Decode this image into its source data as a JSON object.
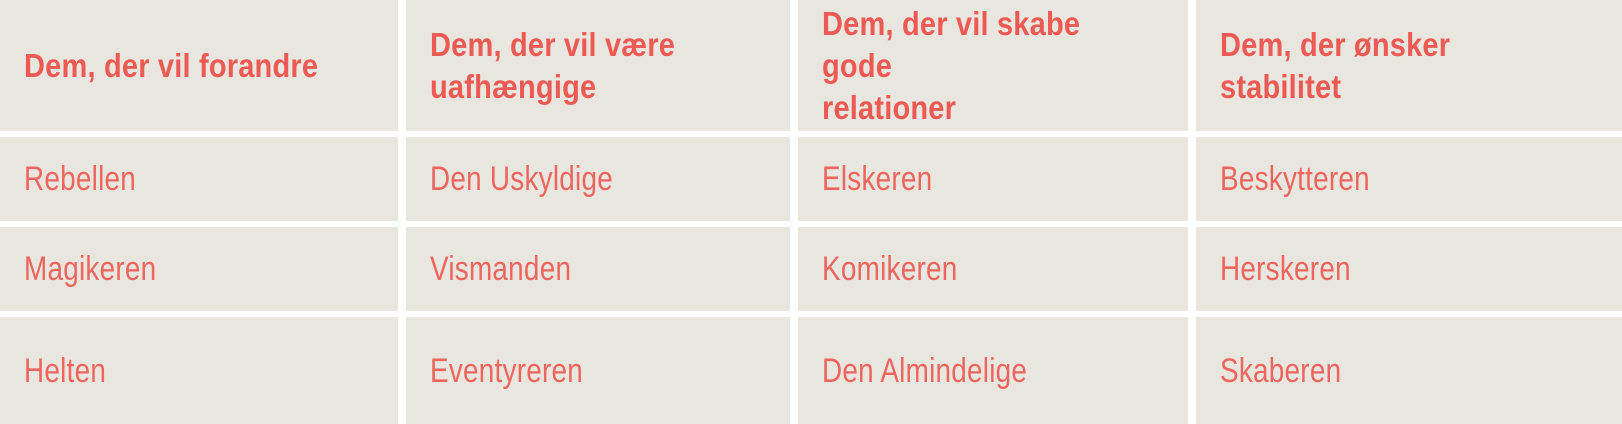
{
  "table": {
    "columns": [
      {
        "header": "Dem, der vil forandre",
        "cells": [
          "Rebellen",
          "Magikeren",
          "Helten"
        ]
      },
      {
        "header": "Dem, der vil være\nuafhængige",
        "cells": [
          "Den Uskyldige",
          "Vismanden",
          "Eventyreren"
        ]
      },
      {
        "header": "Dem, der vil skabe gode\nrelationer",
        "cells": [
          "Elskeren",
          "Komikeren",
          "Den Almindelige"
        ]
      },
      {
        "header": "Dem, der ønsker\nstabilitet",
        "cells": [
          "Beskytteren",
          "Herskeren",
          "Skaberen"
        ]
      }
    ]
  },
  "colors": {
    "cell_bg": "#e9e5df",
    "grid_line": "#ffffff",
    "header_accent": "#ed5a53",
    "text_accent": "#ee655e"
  }
}
